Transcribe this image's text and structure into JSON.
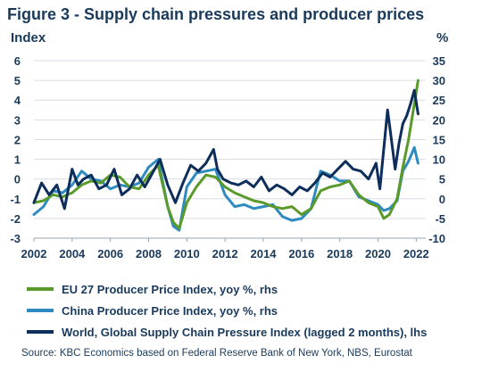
{
  "title": "Figure 3 - Supply chain pressures and producer prices",
  "source": "Source: KBC Economics based on Federal Reserve Bank of New York, NBS, Eurostat",
  "chart_data": {
    "type": "line",
    "title": "Figure 3 - Supply chain pressures and producer prices",
    "y_left_label": "Index",
    "y_right_label": "%",
    "xlim": [
      2002,
      2022.5
    ],
    "ylim_left": [
      -3,
      6
    ],
    "ylim_right": [
      -10,
      35
    ],
    "x_ticks": [
      2002,
      2004,
      2006,
      2008,
      2010,
      2012,
      2014,
      2016,
      2018,
      2020,
      2022
    ],
    "y_left_ticks": [
      -3,
      -2,
      -1,
      0,
      1,
      2,
      3,
      4,
      5,
      6
    ],
    "y_right_ticks": [
      -10,
      -5,
      0,
      5,
      10,
      15,
      20,
      25,
      30,
      35
    ],
    "grid": true,
    "legend_position": "bottom",
    "series": [
      {
        "name": "EU 27 Producer Price Index, yoy %, rhs",
        "axis": "right",
        "color": "#5a9a2a",
        "x": [
          2002.0,
          2002.5,
          2003.0,
          2003.5,
          2004.0,
          2004.5,
          2005.0,
          2005.5,
          2006.0,
          2006.5,
          2007.0,
          2007.5,
          2008.0,
          2008.5,
          2009.0,
          2009.3,
          2009.6,
          2010.0,
          2010.5,
          2011.0,
          2011.5,
          2012.0,
          2012.5,
          2013.0,
          2013.5,
          2014.0,
          2014.5,
          2015.0,
          2015.5,
          2016.0,
          2016.5,
          2017.0,
          2017.5,
          2018.0,
          2018.5,
          2019.0,
          2019.5,
          2020.0,
          2020.3,
          2020.6,
          2021.0,
          2021.3,
          2021.6,
          2021.9,
          2022.1
        ],
        "y": [
          -1.0,
          -0.5,
          1.0,
          0.5,
          1.5,
          3.5,
          4.5,
          4.0,
          6.0,
          5.5,
          3.0,
          2.5,
          6.0,
          8.5,
          -2.0,
          -6.0,
          -7.5,
          -1.0,
          3.0,
          6.0,
          5.5,
          3.0,
          1.5,
          0.5,
          -0.5,
          -1.0,
          -2.0,
          -2.5,
          -2.0,
          -4.0,
          -2.5,
          2.0,
          3.0,
          3.5,
          4.5,
          1.0,
          -1.0,
          -2.0,
          -5.0,
          -4.0,
          0.0,
          8.0,
          15.0,
          24.0,
          30.0
        ]
      },
      {
        "name": "China Producer Price Index, yoy %, rhs",
        "axis": "right",
        "color": "#2d8bc0",
        "x": [
          2002.0,
          2002.5,
          2003.0,
          2003.5,
          2004.0,
          2004.5,
          2005.0,
          2005.5,
          2006.0,
          2006.5,
          2007.0,
          2007.5,
          2008.0,
          2008.5,
          2009.0,
          2009.3,
          2009.6,
          2010.0,
          2010.5,
          2011.0,
          2011.5,
          2012.0,
          2012.5,
          2013.0,
          2013.5,
          2014.0,
          2014.5,
          2015.0,
          2015.5,
          2016.0,
          2016.5,
          2017.0,
          2017.5,
          2018.0,
          2018.5,
          2019.0,
          2019.5,
          2020.0,
          2020.3,
          2020.6,
          2021.0,
          2021.3,
          2021.6,
          2021.9,
          2022.1
        ],
        "y": [
          -4.0,
          -2.0,
          2.0,
          1.5,
          3.5,
          7.0,
          5.0,
          4.5,
          2.5,
          3.5,
          3.0,
          4.0,
          8.0,
          10.0,
          -2.0,
          -7.0,
          -8.0,
          3.0,
          6.5,
          7.0,
          7.5,
          1.0,
          -2.0,
          -1.5,
          -2.5,
          -2.0,
          -1.5,
          -4.5,
          -5.5,
          -5.0,
          -2.5,
          7.0,
          6.0,
          4.5,
          4.5,
          0.5,
          -0.5,
          -1.5,
          -3.0,
          -2.5,
          -0.5,
          7.0,
          9.5,
          13.0,
          9.0
        ]
      },
      {
        "name": "World, Global Supply Chain Pressure Index (lagged 2 months), lhs",
        "axis": "left",
        "color": "#0d2d5a",
        "x": [
          2002.0,
          2002.4,
          2002.8,
          2003.2,
          2003.6,
          2004.0,
          2004.3,
          2004.6,
          2005.0,
          2005.4,
          2005.8,
          2006.2,
          2006.6,
          2007.0,
          2007.4,
          2007.8,
          2008.2,
          2008.6,
          2009.0,
          2009.4,
          2009.8,
          2010.2,
          2010.6,
          2011.0,
          2011.4,
          2011.6,
          2011.9,
          2012.3,
          2012.7,
          2013.1,
          2013.5,
          2013.9,
          2014.3,
          2014.7,
          2015.1,
          2015.5,
          2015.9,
          2016.3,
          2016.7,
          2017.1,
          2017.5,
          2017.9,
          2018.3,
          2018.7,
          2019.1,
          2019.5,
          2019.9,
          2020.1,
          2020.3,
          2020.5,
          2020.7,
          2020.9,
          2021.1,
          2021.3,
          2021.5,
          2021.7,
          2021.9,
          2022.1
        ],
        "y": [
          -1.2,
          -0.2,
          -0.8,
          -0.3,
          -1.5,
          0.5,
          -0.3,
          0.0,
          0.2,
          -0.5,
          -0.3,
          0.5,
          -0.8,
          -0.5,
          0.2,
          -0.4,
          0.3,
          1.0,
          -0.3,
          -1.2,
          -0.2,
          0.7,
          0.4,
          0.8,
          1.5,
          0.5,
          0.0,
          -0.2,
          -0.3,
          -0.1,
          -0.4,
          0.1,
          -0.6,
          -0.3,
          -0.5,
          -0.8,
          -0.4,
          -0.6,
          -0.2,
          0.3,
          0.1,
          0.5,
          0.9,
          0.5,
          0.4,
          0.0,
          0.8,
          -0.5,
          1.5,
          3.5,
          2.0,
          0.5,
          1.8,
          2.8,
          3.2,
          3.8,
          4.5,
          3.3
        ]
      }
    ]
  }
}
